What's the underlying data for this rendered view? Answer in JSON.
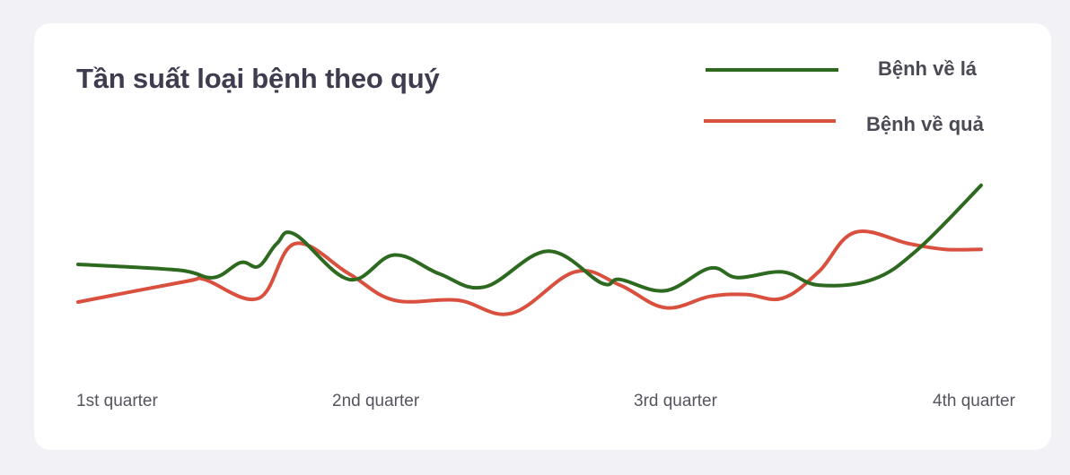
{
  "chart_data": {
    "type": "line",
    "title": "Tần suất loại bệnh theo quý",
    "xlabel": "",
    "ylabel": "",
    "legend_position": "top-right",
    "grid": false,
    "categories": [
      "1st quarter",
      "2nd quarter",
      "3rd quarter",
      "4th quarter"
    ],
    "x": [
      0.0,
      0.12,
      0.19,
      0.24,
      0.28,
      0.35,
      0.58,
      0.72,
      0.88,
      1.0
    ],
    "series": [
      {
        "name": "Bệnh về lá",
        "color": "#2d6a1f",
        "x": [
          0,
          0.11,
          0.15,
          0.18,
          0.2,
          0.22,
          0.24,
          0.3,
          0.35,
          0.4,
          0.45,
          0.52,
          0.58,
          0.6,
          0.65,
          0.7,
          0.73,
          0.78,
          0.82,
          0.88,
          0.93,
          1.0
        ],
        "values": [
          50,
          47,
          43,
          51,
          49,
          61,
          66,
          42,
          55,
          45,
          38,
          57,
          40,
          42,
          36,
          48,
          43,
          46,
          39,
          42,
          58,
          92
        ]
      },
      {
        "name": "Bệnh về quả",
        "color": "#d9503f",
        "x": [
          0,
          0.12,
          0.14,
          0.2,
          0.24,
          0.3,
          0.35,
          0.42,
          0.48,
          0.55,
          0.6,
          0.65,
          0.7,
          0.74,
          0.78,
          0.82,
          0.86,
          0.92,
          0.96,
          1.0
        ],
        "values": [
          30,
          41,
          42,
          32,
          61,
          45,
          31,
          31,
          24,
          46,
          39,
          27,
          33,
          34,
          32,
          46,
          67,
          61,
          58,
          58
        ]
      }
    ],
    "ylim": [
      0,
      100
    ]
  }
}
